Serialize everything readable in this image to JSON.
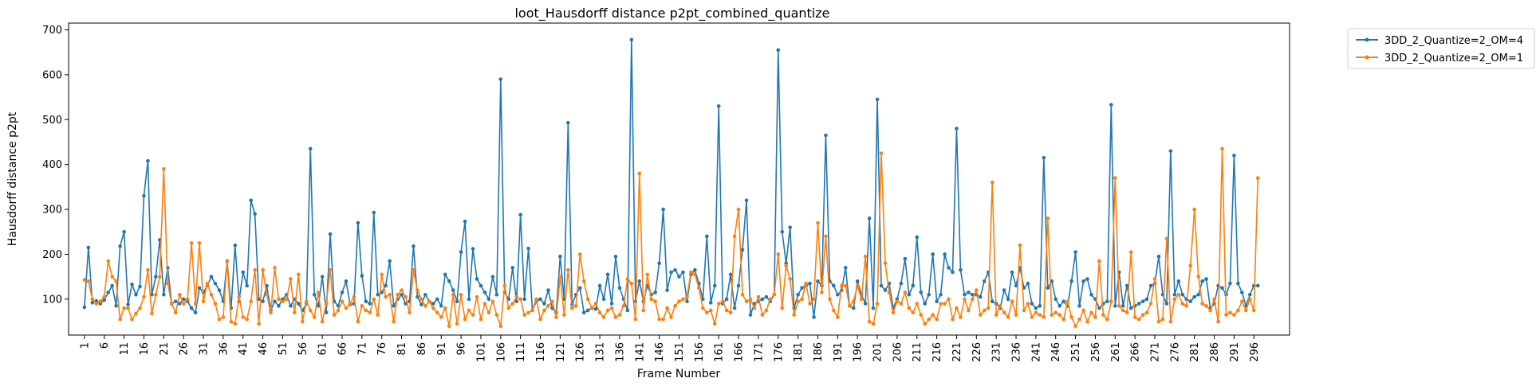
{
  "chart_data": {
    "type": "line",
    "title": "loot_Hausdorff distance p2pt_combined_quantize",
    "xlabel": "Frame Number",
    "ylabel": "Hausdorff distance p2pt",
    "xlim": [
      -3,
      305
    ],
    "ylim": [
      20,
      715
    ],
    "yticks": [
      100,
      200,
      300,
      400,
      500,
      600,
      700
    ],
    "xticks": [
      1,
      6,
      11,
      16,
      21,
      26,
      31,
      36,
      41,
      46,
      51,
      56,
      61,
      66,
      71,
      76,
      81,
      86,
      91,
      96,
      101,
      106,
      111,
      116,
      121,
      126,
      131,
      136,
      141,
      146,
      151,
      156,
      161,
      166,
      171,
      176,
      181,
      186,
      191,
      196,
      201,
      206,
      211,
      216,
      221,
      226,
      231,
      236,
      241,
      246,
      251,
      256,
      261,
      266,
      271,
      276,
      281,
      286,
      291,
      296
    ],
    "x_start": 1,
    "legend_position": "outside-upper-right",
    "grid": false,
    "series": [
      {
        "name": "3DD_2_Quantize=2_OM=4",
        "color": "#1f77b4",
        "values": [
          82,
          215,
          92,
          96,
          90,
          98,
          115,
          130,
          85,
          218,
          250,
          88,
          133,
          110,
          128,
          330,
          408,
          110,
          150,
          232,
          110,
          170,
          90,
          95,
          90,
          100,
          95,
          80,
          70,
          125,
          115,
          130,
          150,
          135,
          120,
          95,
          185,
          80,
          220,
          95,
          160,
          130,
          320,
          290,
          100,
          95,
          130,
          75,
          95,
          85,
          100,
          110,
          85,
          100,
          90,
          75,
          90,
          435,
          110,
          85,
          150,
          70,
          245,
          95,
          85,
          115,
          140,
          88,
          90,
          270,
          152,
          95,
          90,
          293,
          110,
          115,
          130,
          185,
          85,
          100,
          110,
          90,
          95,
          218,
          105,
          88,
          110,
          95,
          90,
          100,
          85,
          155,
          140,
          120,
          95,
          205,
          273,
          100,
          212,
          145,
          130,
          115,
          100,
          150,
          110,
          590,
          115,
          100,
          170,
          95,
          288,
          100,
          213,
          75,
          95,
          100,
          90,
          120,
          80,
          70,
          195,
          100,
          493,
          88,
          110,
          125,
          70,
          75,
          80,
          78,
          130,
          100,
          155,
          90,
          195,
          125,
          100,
          75,
          678,
          95,
          140,
          95,
          130,
          110,
          115,
          180,
          300,
          120,
          160,
          165,
          150,
          160,
          95,
          155,
          165,
          135,
          100,
          240,
          92,
          130,
          530,
          90,
          100,
          155,
          80,
          130,
          210,
          320,
          65,
          90,
          95,
          100,
          105,
          95,
          110,
          655,
          250,
          180,
          260,
          80,
          110,
          125,
          130,
          135,
          60,
          140,
          130,
          465,
          140,
          130,
          110,
          120,
          170,
          85,
          80,
          140,
          110,
          90,
          280,
          80,
          545,
          130,
          120,
          135,
          80,
          100,
          135,
          190,
          110,
          130,
          238,
          115,
          90,
          110,
          200,
          95,
          110,
          200,
          170,
          160,
          480,
          165,
          110,
          115,
          110,
          110,
          105,
          140,
          160,
          95,
          90,
          80,
          120,
          100,
          160,
          130,
          170,
          125,
          135,
          90,
          80,
          85,
          415,
          125,
          140,
          100,
          85,
          95,
          85,
          140,
          205,
          85,
          140,
          145,
          110,
          100,
          80,
          90,
          95,
          533,
          85,
          160,
          85,
          130,
          80,
          85,
          90,
          95,
          100,
          130,
          135,
          195,
          110,
          90,
          430,
          110,
          140,
          110,
          100,
          95,
          105,
          110,
          140,
          145,
          80,
          90,
          130,
          125,
          110,
          135,
          420,
          135,
          115,
          85,
          110,
          130,
          130
        ]
      },
      {
        "name": "3DD_2_Quantize=2_OM=1",
        "color": "#ff7f0e",
        "values": [
          143,
          140,
          100,
          90,
          95,
          105,
          185,
          150,
          140,
          55,
          80,
          80,
          55,
          68,
          80,
          105,
          165,
          68,
          110,
          150,
          390,
          135,
          90,
          70,
          110,
          90,
          100,
          225,
          90,
          225,
          95,
          135,
          110,
          90,
          55,
          60,
          185,
          50,
          45,
          105,
          60,
          55,
          95,
          165,
          45,
          165,
          110,
          70,
          170,
          100,
          95,
          100,
          145,
          70,
          155,
          50,
          95,
          75,
          60,
          115,
          50,
          90,
          165,
          65,
          75,
          95,
          80,
          90,
          105,
          50,
          85,
          75,
          70,
          100,
          65,
          155,
          105,
          110,
          50,
          110,
          120,
          105,
          70,
          165,
          120,
          100,
          85,
          95,
          80,
          70,
          60,
          80,
          40,
          110,
          45,
          110,
          55,
          75,
          65,
          105,
          55,
          90,
          70,
          95,
          65,
          40,
          130,
          80,
          90,
          105,
          100,
          65,
          70,
          75,
          100,
          55,
          75,
          85,
          95,
          60,
          150,
          65,
          165,
          80,
          85,
          200,
          140,
          100,
          80,
          90,
          70,
          60,
          75,
          80,
          60,
          65,
          85,
          145,
          135,
          55,
          380,
          75,
          155,
          100,
          95,
          55,
          55,
          80,
          60,
          85,
          95,
          100,
          105,
          160,
          155,
          125,
          80,
          70,
          75,
          45,
          90,
          95,
          75,
          70,
          240,
          300,
          110,
          95,
          100,
          80,
          105,
          65,
          75,
          100,
          110,
          200,
          80,
          175,
          145,
          65,
          95,
          100,
          135,
          90,
          100,
          270,
          115,
          240,
          100,
          75,
          60,
          130,
          130,
          85,
          95,
          130,
          100,
          195,
          50,
          45,
          90,
          425,
          180,
          115,
          70,
          95,
          90,
          115,
          80,
          70,
          90,
          65,
          45,
          55,
          65,
          55,
          90,
          90,
          100,
          55,
          80,
          60,
          100,
          75,
          100,
          120,
          65,
          75,
          80,
          360,
          65,
          85,
          70,
          60,
          95,
          65,
          220,
          75,
          90,
          60,
          70,
          65,
          60,
          280,
          65,
          70,
          65,
          55,
          95,
          60,
          40,
          55,
          75,
          50,
          70,
          60,
          185,
          65,
          55,
          95,
          370,
          85,
          75,
          70,
          205,
          60,
          55,
          65,
          70,
          90,
          145,
          50,
          55,
          235,
          50,
          100,
          110,
          90,
          85,
          175,
          300,
          150,
          90,
          85,
          75,
          100,
          50,
          435,
          65,
          70,
          65,
          75,
          95,
          75,
          100,
          75,
          370
        ]
      }
    ]
  }
}
